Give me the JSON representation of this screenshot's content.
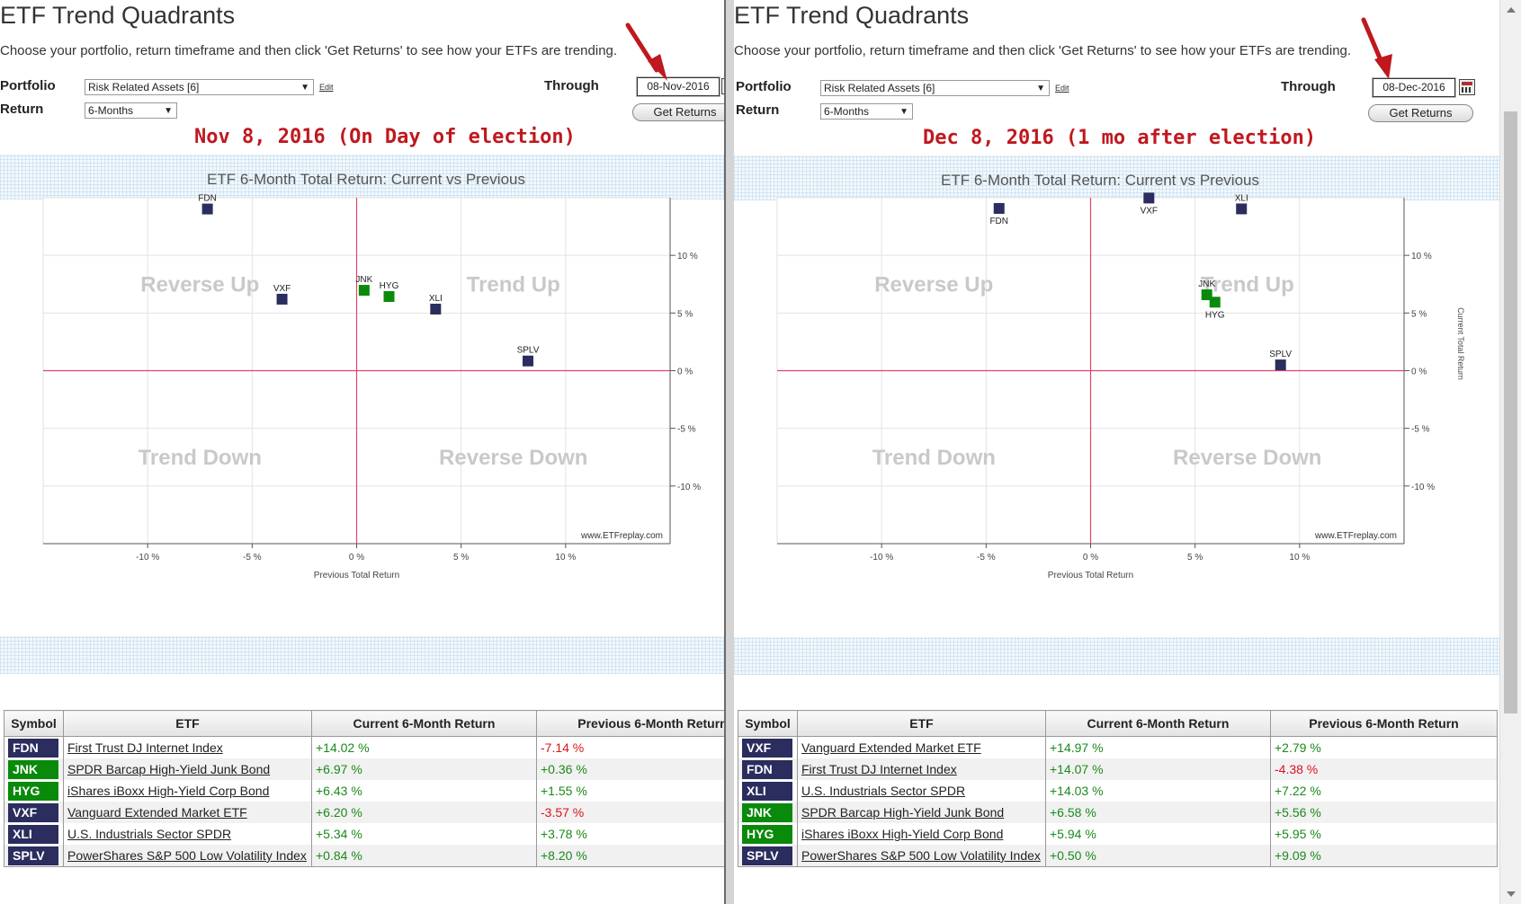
{
  "colors": {
    "pos": "#1a8a1a",
    "neg": "#d8141c",
    "navy": "#2b2d5e",
    "green": "#0a8a0a",
    "crosshair": "#e0456a",
    "annotation": "#c0181e"
  },
  "icons": {
    "arrow": "red-arrow-icon",
    "calendar": "calendar-icon",
    "dropdown": "chevron-down-icon"
  },
  "panels": [
    {
      "app_title": "ETF Trend Quadrants",
      "instructions": "Choose your portfolio, return timeframe and then click 'Get Returns' to see how your ETFs are trending.",
      "portfolio_label": "Portfolio",
      "portfolio_value": "Risk Related Assets [6]",
      "edit_label": "Edit",
      "through_label": "Through",
      "through_value": "08-Nov-2016",
      "return_label": "Return",
      "return_value": "6-Months",
      "get_returns_label": "Get Returns",
      "annotation": "Nov 8, 2016 (On Day of election)",
      "chart_title": "ETF 6-Month Total Return: Current vs Previous",
      "table_headers": [
        "Symbol",
        "ETF",
        "Current 6-Month Return",
        "Previous 6-Month Return"
      ],
      "rows": [
        {
          "symbol": "FDN",
          "name": "First Trust DJ Internet Index",
          "current": "+14.02 %",
          "previous": "-7.14 %"
        },
        {
          "symbol": "JNK",
          "name": "SPDR Barcap High-Yield Junk Bond",
          "current": "+6.97 %",
          "previous": "+0.36 %"
        },
        {
          "symbol": "HYG",
          "name": "iShares iBoxx High-Yield Corp Bond",
          "current": "+6.43 %",
          "previous": "+1.55 %"
        },
        {
          "symbol": "VXF",
          "name": "Vanguard Extended Market ETF",
          "current": "+6.20 %",
          "previous": "-3.57 %"
        },
        {
          "symbol": "XLI",
          "name": "U.S. Industrials Sector SPDR",
          "current": "+5.34 %",
          "previous": "+3.78 %"
        },
        {
          "symbol": "SPLV",
          "name": "PowerShares S&P 500 Low Volatility Index",
          "current": "+0.84 %",
          "previous": "+8.20 %"
        }
      ]
    },
    {
      "app_title": "ETF Trend Quadrants",
      "instructions": "Choose your portfolio, return timeframe and then click 'Get Returns' to see how your ETFs are trending.",
      "portfolio_label": "Portfolio",
      "portfolio_value": "Risk Related Assets [6]",
      "edit_label": "Edit",
      "through_label": "Through",
      "through_value": "08-Dec-2016",
      "return_label": "Return",
      "return_value": "6-Months",
      "get_returns_label": "Get Returns",
      "annotation": "Dec 8, 2016 (1 mo after election)",
      "chart_title": "ETF 6-Month Total Return: Current vs Previous",
      "table_headers": [
        "Symbol",
        "ETF",
        "Current 6-Month Return",
        "Previous 6-Month Return"
      ],
      "rows": [
        {
          "symbol": "VXF",
          "name": "Vanguard Extended Market ETF",
          "current": "+14.97 %",
          "previous": "+2.79 %"
        },
        {
          "symbol": "FDN",
          "name": "First Trust DJ Internet Index",
          "current": "+14.07 %",
          "previous": "-4.38 %"
        },
        {
          "symbol": "XLI",
          "name": "U.S. Industrials Sector SPDR",
          "current": "+14.03 %",
          "previous": "+7.22 %"
        },
        {
          "symbol": "JNK",
          "name": "SPDR Barcap High-Yield Junk Bond",
          "current": "+6.58 %",
          "previous": "+5.56 %"
        },
        {
          "symbol": "HYG",
          "name": "iShares iBoxx High-Yield Corp Bond",
          "current": "+5.94 %",
          "previous": "+5.95 %"
        },
        {
          "symbol": "SPLV",
          "name": "PowerShares S&P 500 Low Volatility Index",
          "current": "+0.50 %",
          "previous": "+9.09 %"
        }
      ]
    }
  ],
  "chart_data": [
    {
      "type": "scatter",
      "title": "ETF 6-Month Total Return: Current vs Previous",
      "xlabel": "Previous Total Return",
      "ylabel": "",
      "xlim": [
        -15,
        15
      ],
      "ylim": [
        -15,
        15
      ],
      "x_ticks": [
        "-10 %",
        "-5 %",
        "0 %",
        "5 %",
        "10 %"
      ],
      "y_ticks": [
        "10 %",
        "5 %",
        "0 %",
        "-5 %",
        "-10 %"
      ],
      "quadrants": [
        "Reverse Up",
        "Trend Up",
        "Trend Down",
        "Reverse Down"
      ],
      "watermark": "www.ETFreplay.com",
      "grid": true,
      "points": [
        {
          "symbol": "FDN",
          "x": -7.14,
          "y": 14.02,
          "group": "navy"
        },
        {
          "symbol": "JNK",
          "x": 0.36,
          "y": 6.97,
          "group": "green"
        },
        {
          "symbol": "HYG",
          "x": 1.55,
          "y": 6.43,
          "group": "green"
        },
        {
          "symbol": "VXF",
          "x": -3.57,
          "y": 6.2,
          "group": "navy"
        },
        {
          "symbol": "XLI",
          "x": 3.78,
          "y": 5.34,
          "group": "navy"
        },
        {
          "symbol": "SPLV",
          "x": 8.2,
          "y": 0.84,
          "group": "navy"
        }
      ]
    },
    {
      "type": "scatter",
      "title": "ETF 6-Month Total Return: Current vs Previous",
      "xlabel": "Previous Total Return",
      "ylabel": "Current Total Return",
      "xlim": [
        -15,
        15
      ],
      "ylim": [
        -15,
        15
      ],
      "x_ticks": [
        "-10 %",
        "-5 %",
        "0 %",
        "5 %",
        "10 %"
      ],
      "y_ticks": [
        "10 %",
        "5 %",
        "0 %",
        "-5 %",
        "-10 %"
      ],
      "quadrants": [
        "Reverse Up",
        "Trend Up",
        "Trend Down",
        "Reverse Down"
      ],
      "watermark": "www.ETFreplay.com",
      "grid": true,
      "points": [
        {
          "symbol": "VXF",
          "x": 2.79,
          "y": 14.97,
          "group": "navy"
        },
        {
          "symbol": "FDN",
          "x": -4.38,
          "y": 14.07,
          "group": "navy"
        },
        {
          "symbol": "XLI",
          "x": 7.22,
          "y": 14.03,
          "group": "navy"
        },
        {
          "symbol": "JNK",
          "x": 5.56,
          "y": 6.58,
          "group": "green"
        },
        {
          "symbol": "HYG",
          "x": 5.95,
          "y": 5.94,
          "group": "green"
        },
        {
          "symbol": "SPLV",
          "x": 9.09,
          "y": 0.5,
          "group": "navy"
        }
      ]
    }
  ]
}
